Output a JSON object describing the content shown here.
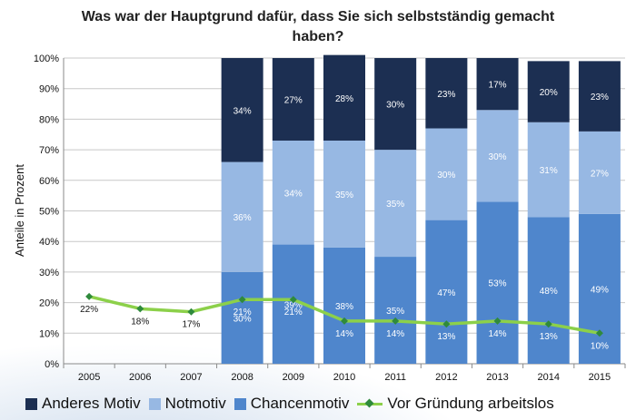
{
  "chart_data": {
    "type": "bar",
    "stacked": true,
    "title": "Was war der Hauptgrund dafür, dass Sie sich selbstständig gemacht haben?",
    "xlabel": "",
    "ylabel": "Anteile in Prozent",
    "ylim": [
      0,
      100
    ],
    "y_ticks": [
      "0%",
      "10%",
      "20%",
      "30%",
      "40%",
      "50%",
      "60%",
      "70%",
      "80%",
      "90%",
      "100%"
    ],
    "categories": [
      "2005",
      "2006",
      "2007",
      "2008",
      "2009",
      "2010",
      "2011",
      "2012",
      "2013",
      "2014",
      "2015"
    ],
    "series": [
      {
        "name": "Anderes Motiv",
        "kind": "bar",
        "color": "#1c2f52",
        "values": [
          null,
          null,
          null,
          34,
          27,
          28,
          30,
          23,
          17,
          20,
          23
        ],
        "labels": [
          "",
          "",
          "",
          "34%",
          "27%",
          "28%",
          "30%",
          "23%",
          "17%",
          "20%",
          "23%"
        ]
      },
      {
        "name": "Notmotiv",
        "kind": "bar",
        "color": "#97b8e3",
        "values": [
          null,
          null,
          null,
          36,
          34,
          35,
          35,
          30,
          30,
          31,
          27
        ],
        "labels": [
          "",
          "",
          "",
          "36%",
          "34%",
          "35%",
          "35%",
          "30%",
          "30%",
          "31%",
          "27%"
        ]
      },
      {
        "name": "Chancenmotiv",
        "kind": "bar",
        "color": "#4f86cc",
        "values": [
          null,
          null,
          null,
          30,
          39,
          38,
          35,
          47,
          53,
          48,
          49
        ],
        "labels": [
          "",
          "",
          "",
          "30%",
          "39%",
          "38%",
          "35%",
          "47%",
          "53%",
          "48%",
          "49%"
        ]
      },
      {
        "name": "Vor Gründung arbeitslos",
        "kind": "line",
        "color": "#8cd04a",
        "marker_color": "#2f8a3c",
        "values": [
          22,
          18,
          17,
          21,
          21,
          14,
          14,
          13,
          14,
          13,
          10
        ],
        "labels": [
          "22%",
          "18%",
          "17%",
          "21%",
          "21%",
          "14%",
          "14%",
          "13%",
          "14%",
          "13%",
          "10%"
        ]
      }
    ],
    "grid": true,
    "legend": "bottom"
  }
}
